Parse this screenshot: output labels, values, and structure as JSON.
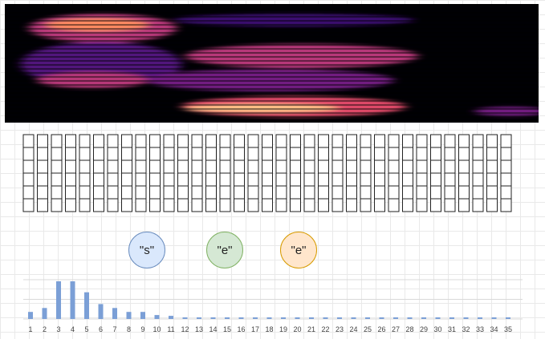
{
  "spectrogram": {
    "colormap": "magma"
  },
  "frame_grid": {
    "columns": 35,
    "rows": 6,
    "stroke_color": "#222222"
  },
  "tokens": [
    {
      "label": "\"s\"",
      "fill": "#dae8fc",
      "stroke": "#6c8ebf"
    },
    {
      "label": "\"e\"",
      "fill": "#d5e8d4",
      "stroke": "#82b366"
    },
    {
      "label": "\"e\"",
      "fill": "#ffe6cc",
      "stroke": "#d79b00"
    }
  ],
  "chart_data": {
    "type": "bar",
    "categories": [
      "1",
      "2",
      "3",
      "4",
      "5",
      "6",
      "7",
      "8",
      "9",
      "10",
      "11",
      "12",
      "13",
      "14",
      "15",
      "16",
      "17",
      "18",
      "19",
      "20",
      "21",
      "22",
      "23",
      "24",
      "25",
      "26",
      "27",
      "28",
      "29",
      "30",
      "31",
      "32",
      "33",
      "34",
      "35"
    ],
    "values": [
      9,
      14,
      48,
      48,
      34,
      19,
      14,
      9,
      9,
      5,
      4,
      2,
      2,
      2,
      2,
      2,
      2,
      2,
      2,
      2,
      2,
      2,
      2,
      2,
      2,
      2,
      2,
      2,
      2,
      2,
      2,
      2,
      2,
      2,
      2
    ],
    "ylim": [
      0,
      50
    ],
    "grid": true,
    "bar_color": "#7b9fd6",
    "title": "",
    "xlabel": "",
    "ylabel": ""
  }
}
